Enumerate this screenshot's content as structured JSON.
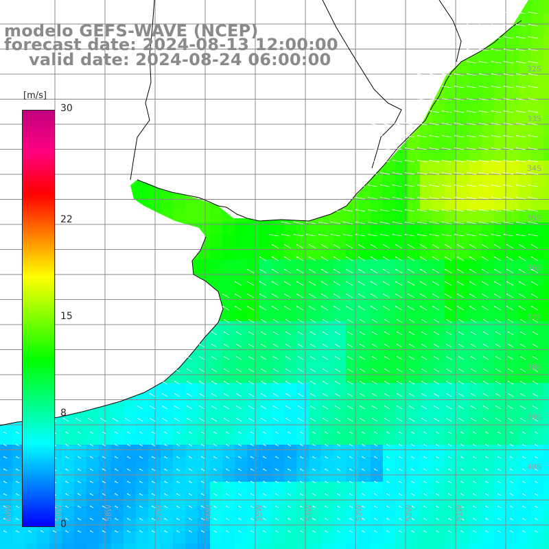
{
  "title": {
    "line1": "modelo GEFS-WAVE (NCEP)",
    "line2": "forecast date: 2024-08-13 12:00:00",
    "line3": "valid date: 2024-08-24 06:00:00"
  },
  "colorbar": {
    "unit": "[m/s]",
    "ticks": [
      {
        "label": "30",
        "value": 30
      },
      {
        "label": "22",
        "value": 22
      },
      {
        "label": "15",
        "value": 15
      },
      {
        "label": "8",
        "value": 8
      },
      {
        "label": "0",
        "value": 0
      }
    ],
    "stops": [
      "#0000ff",
      "#0080ff",
      "#00ffff",
      "#00ff80",
      "#00ff00",
      "#80ff00",
      "#ffff00",
      "#ff8000",
      "#ff0000",
      "#ff0080",
      "#c0007f"
    ]
  },
  "map": {
    "lat_labels": [
      "32S",
      "33S",
      "34S",
      "35S",
      "36S",
      "37S",
      "38S",
      "39S",
      "40S"
    ],
    "lon_labels": [
      "60W",
      "59W",
      "58W",
      "57W",
      "56W",
      "55W",
      "54W",
      "53W",
      "52W",
      "51W"
    ],
    "land_color": "#ffffff",
    "grid_color": "#888888"
  }
}
